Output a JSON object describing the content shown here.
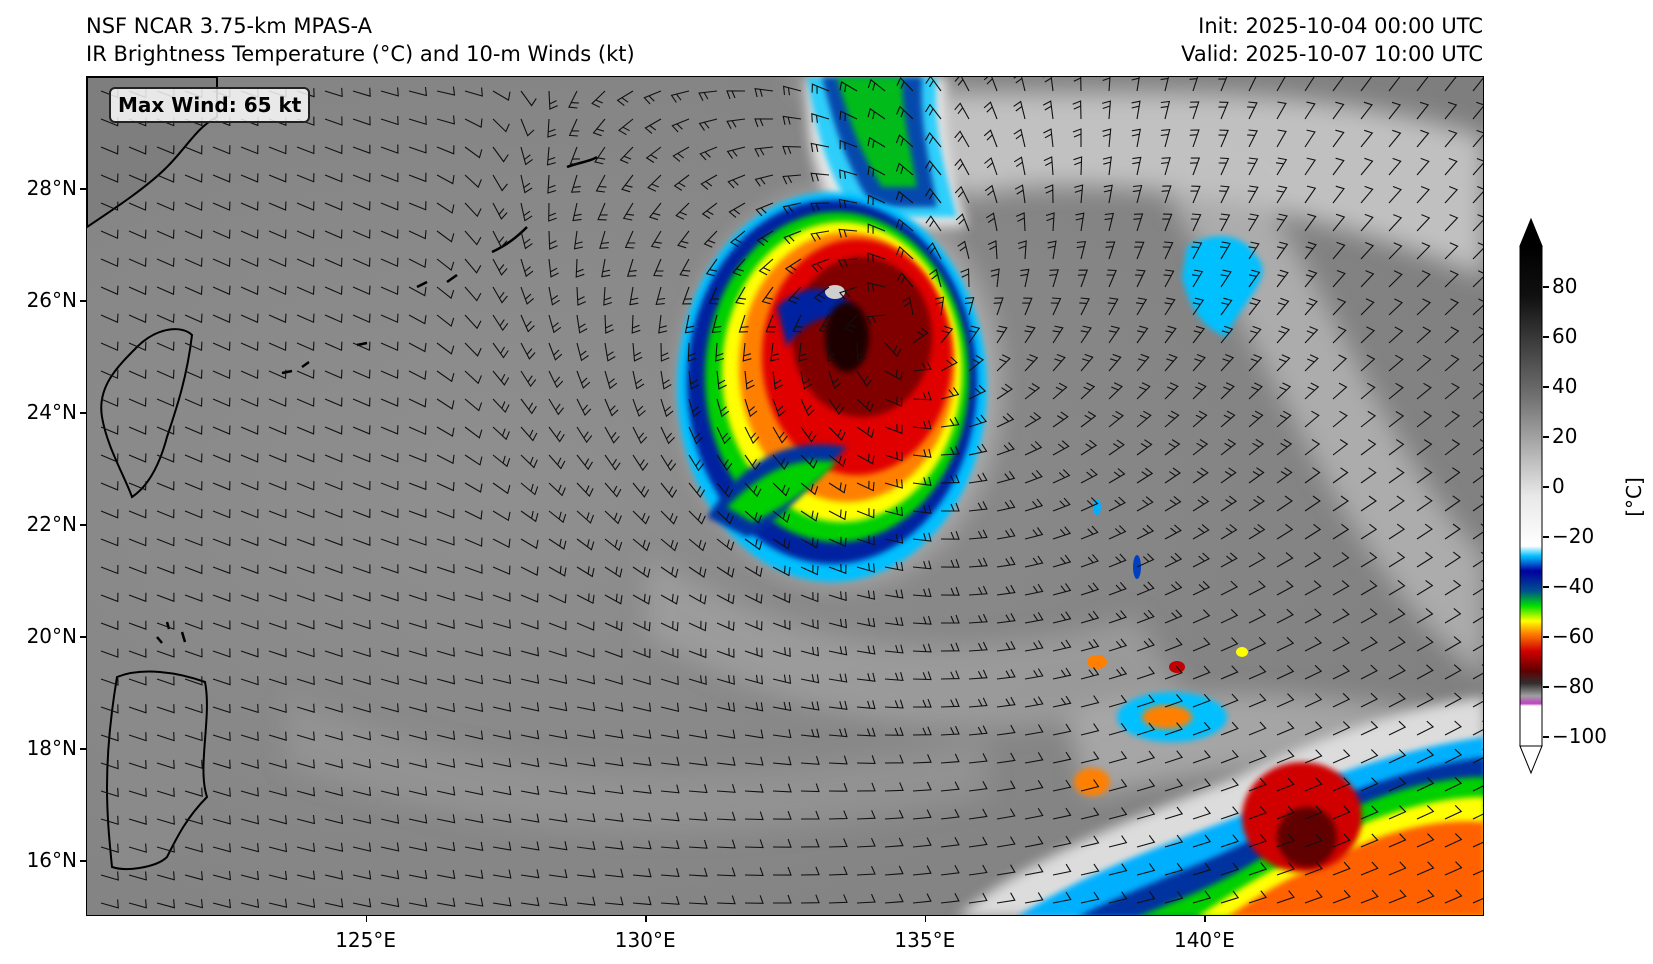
{
  "header": {
    "model": "NSF NCAR 3.75-km MPAS-A",
    "product": "IR Brightness Temperature (°C) and 10-m Winds (kt)",
    "init": "Init: 2025-10-04 00:00 UTC",
    "valid": "Valid: 2025-10-07 10:00 UTC"
  },
  "map": {
    "max_wind_label": "Max Wind: 65 kt",
    "lon_range": [
      120.0,
      145.0
    ],
    "lat_range": [
      15.0,
      30.0
    ],
    "lat_labels": [
      "28°N",
      "26°N",
      "24°N",
      "22°N",
      "20°N",
      "18°N",
      "16°N"
    ],
    "lon_labels": [
      "125°E",
      "130°E",
      "135°E",
      "140°E"
    ],
    "storm_center": {
      "lon": 134.4,
      "lat": 25.5
    },
    "background_color": "#8a8a8a",
    "coastline_color": "#000000"
  },
  "colorbar": {
    "unit_label": "[°C]",
    "tick_labels": [
      "80",
      "60",
      "40",
      "20",
      "0",
      "−20",
      "−40",
      "−60",
      "−80",
      "−100"
    ],
    "range": [
      -100,
      100
    ],
    "stops": [
      {
        "value": -100,
        "color": "#ffffff"
      },
      {
        "value": -84,
        "color": "#ffffff"
      },
      {
        "value": -83,
        "color": "#c040c0"
      },
      {
        "value": -80,
        "color": "#a0a0a0"
      },
      {
        "value": -75,
        "color": "#303030"
      },
      {
        "value": -70,
        "color": "#600000"
      },
      {
        "value": -62,
        "color": "#d00000"
      },
      {
        "value": -55,
        "color": "#ff8000"
      },
      {
        "value": -50,
        "color": "#ffff00"
      },
      {
        "value": -44,
        "color": "#00e000"
      },
      {
        "value": -38,
        "color": "#005090"
      },
      {
        "value": -30,
        "color": "#0000a0"
      },
      {
        "value": -24,
        "color": "#00c0ff"
      },
      {
        "value": -20,
        "color": "#ffffff"
      },
      {
        "value": 0,
        "color": "#e8e8e8"
      },
      {
        "value": 40,
        "color": "#707070"
      },
      {
        "value": 80,
        "color": "#101010"
      },
      {
        "value": 100,
        "color": "#000000"
      }
    ]
  }
}
